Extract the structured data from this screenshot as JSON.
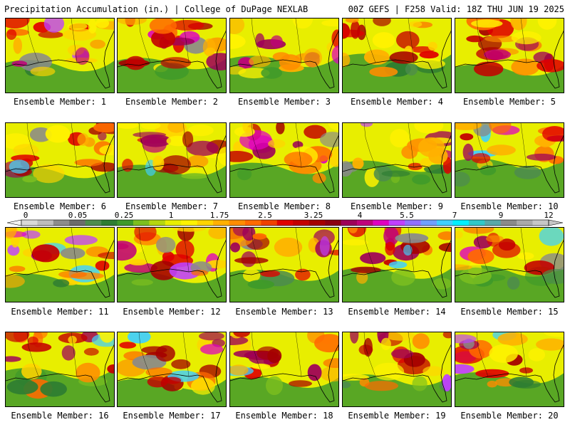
{
  "header": {
    "title": "Precipitation Accumulation (in.) | College of DuPage NEXLAB",
    "run_info": "00Z GEFS | F258 Valid: 18Z THU JUN 19 2025"
  },
  "members": [
    {
      "label": "Ensemble Member: 1"
    },
    {
      "label": "Ensemble Member: 2"
    },
    {
      "label": "Ensemble Member: 3"
    },
    {
      "label": "Ensemble Member: 4"
    },
    {
      "label": "Ensemble Member: 5"
    },
    {
      "label": "Ensemble Member: 6"
    },
    {
      "label": "Ensemble Member: 7"
    },
    {
      "label": "Ensemble Member: 8"
    },
    {
      "label": "Ensemble Member: 9"
    },
    {
      "label": "Ensemble Member: 10"
    },
    {
      "label": "Ensemble Member: 11"
    },
    {
      "label": "Ensemble Member: 12"
    },
    {
      "label": "Ensemble Member: 13"
    },
    {
      "label": "Ensemble Member: 14"
    },
    {
      "label": "Ensemble Member: 15"
    },
    {
      "label": "Ensemble Member: 16"
    },
    {
      "label": "Ensemble Member: 17"
    },
    {
      "label": "Ensemble Member: 18"
    },
    {
      "label": "Ensemble Member: 19"
    },
    {
      "label": "Ensemble Member: 20"
    }
  ],
  "colorbar": {
    "labels": [
      "0",
      "0.05",
      "0.25",
      "1",
      "1.75",
      "2.5",
      "3.25",
      "4",
      "5.5",
      "7",
      "9",
      "12"
    ],
    "colors": [
      "#d9d9d9",
      "#bdbdbd",
      "#8c8c8c",
      "#6b6b6b",
      "#4d8c4d",
      "#2e7d32",
      "#3f9a2a",
      "#7cbf1f",
      "#b5d60f",
      "#e8ee00",
      "#fff200",
      "#ffd400",
      "#ffb000",
      "#ff8c00",
      "#ff6a00",
      "#f04000",
      "#e00000",
      "#c40000",
      "#a50000",
      "#8b0010",
      "#9e0059",
      "#c0007a",
      "#e000c0",
      "#c040ff",
      "#9070ff",
      "#6fa0ff",
      "#40d0ff",
      "#00f0ff",
      "#30c8c8",
      "#58a8a8",
      "#8a8a8a",
      "#a9a9a9",
      "#c6c6c6"
    ]
  }
}
